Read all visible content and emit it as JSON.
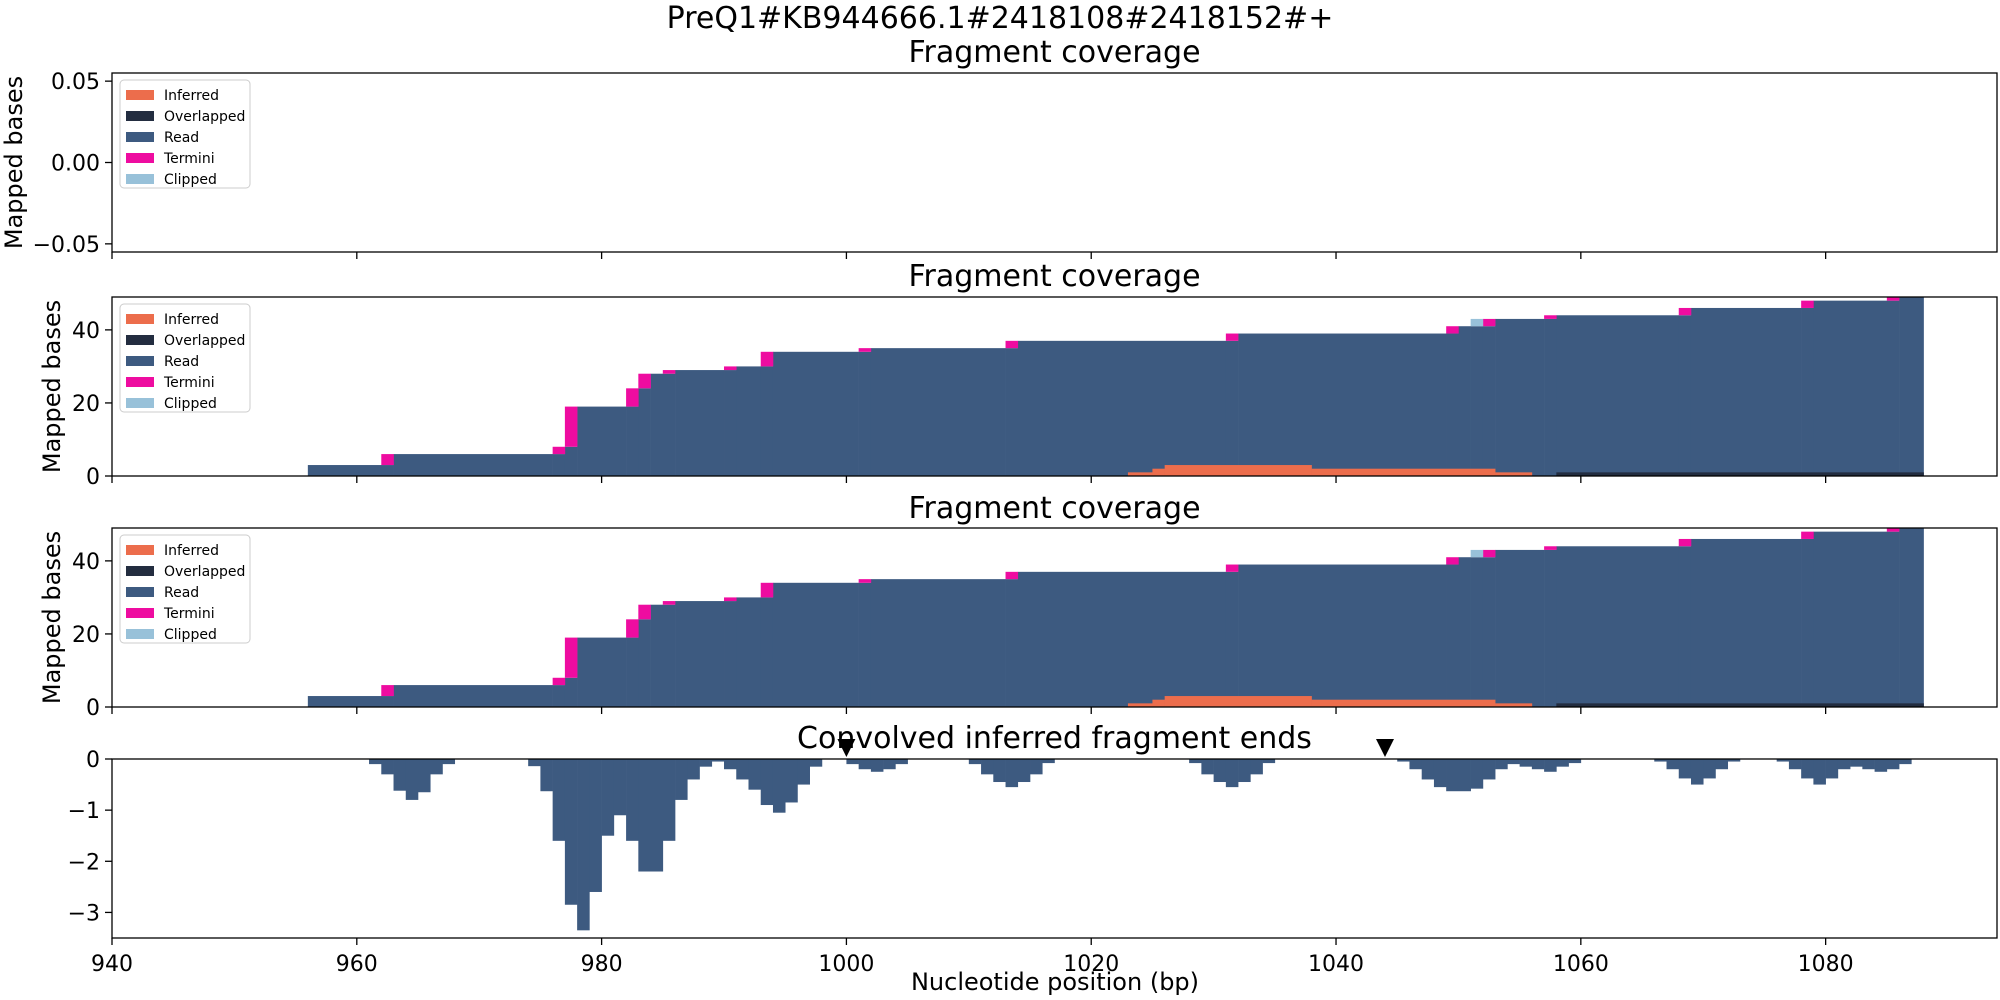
{
  "figure": {
    "suptitle": "PreQ1#KB944666.1#2418108#2418152#+",
    "xlabel": "Nucleotide position (bp)"
  },
  "legend": [
    {
      "label": "Inferred",
      "color": "#ec6d4c"
    },
    {
      "label": "Overlapped",
      "color": "#232d40"
    },
    {
      "label": "Read",
      "color": "#3d5a80"
    },
    {
      "label": "Termini",
      "color": "#ee0ca0"
    },
    {
      "label": "Clipped",
      "color": "#98c1d9"
    }
  ],
  "chart_data": [
    {
      "type": "bar",
      "title": "Fragment coverage",
      "ylabel": "Mapped bases",
      "xlim": [
        940,
        1094
      ],
      "ylim": [
        -0.055,
        0.055
      ],
      "yticks": [
        "0.05",
        "0.00",
        "−0.05"
      ],
      "xticks": [
        "940",
        "960",
        "980",
        "1000",
        "1020",
        "1040",
        "1060",
        "1080"
      ],
      "series": []
    },
    {
      "type": "bar",
      "title": "Fragment coverage",
      "ylabel": "Mapped bases",
      "xlim": [
        940,
        1094
      ],
      "ylim": [
        0,
        49
      ],
      "yticks": [
        "0",
        "20",
        "40"
      ],
      "xticks": [
        "940",
        "960",
        "980",
        "1000",
        "1020",
        "1040",
        "1060",
        "1080"
      ],
      "stacked_steps": [
        {
          "x": 956,
          "read": 3,
          "termini": 0
        },
        {
          "x": 962,
          "read": 3,
          "termini": 3
        },
        {
          "x": 963,
          "read": 6,
          "termini": 0
        },
        {
          "x": 976,
          "read": 6,
          "termini": 2
        },
        {
          "x": 977,
          "read": 8,
          "termini": 11
        },
        {
          "x": 978,
          "read": 19,
          "termini": 0
        },
        {
          "x": 982,
          "read": 19,
          "termini": 5
        },
        {
          "x": 983,
          "read": 24,
          "termini": 4
        },
        {
          "x": 984,
          "read": 28,
          "termini": 0
        },
        {
          "x": 985,
          "read": 28,
          "termini": 1
        },
        {
          "x": 986,
          "read": 29,
          "termini": 0
        },
        {
          "x": 990,
          "read": 29,
          "termini": 1
        },
        {
          "x": 991,
          "read": 30,
          "termini": 0
        },
        {
          "x": 993,
          "read": 30,
          "termini": 4
        },
        {
          "x": 994,
          "read": 34,
          "termini": 0
        },
        {
          "x": 1001,
          "read": 34,
          "termini": 1
        },
        {
          "x": 1002,
          "read": 35,
          "termini": 0
        },
        {
          "x": 1013,
          "read": 35,
          "termini": 2
        },
        {
          "x": 1014,
          "read": 37,
          "termini": 0
        },
        {
          "x": 1031,
          "read": 37,
          "termini": 2
        },
        {
          "x": 1032,
          "read": 39,
          "termini": 0
        },
        {
          "x": 1049,
          "read": 39,
          "termini": 2
        },
        {
          "x": 1050,
          "read": 41,
          "termini": 0
        },
        {
          "x": 1051,
          "read": 41,
          "termini": 0,
          "clipped": 2
        },
        {
          "x": 1052,
          "read": 41,
          "termini": 2
        },
        {
          "x": 1053,
          "read": 43,
          "termini": 0
        },
        {
          "x": 1057,
          "read": 43,
          "termini": 1
        },
        {
          "x": 1058,
          "read": 44,
          "termini": 0
        },
        {
          "x": 1068,
          "read": 44,
          "termini": 2
        },
        {
          "x": 1069,
          "read": 46,
          "termini": 0
        },
        {
          "x": 1078,
          "read": 46,
          "termini": 2
        },
        {
          "x": 1079,
          "read": 48,
          "termini": 0
        },
        {
          "x": 1085,
          "read": 48,
          "termini": 1
        },
        {
          "x": 1086,
          "read": 49,
          "termini": 0
        },
        {
          "x": 1088,
          "read": 0,
          "termini": 0
        }
      ],
      "inferred_steps": [
        {
          "x": 1023,
          "y": 1
        },
        {
          "x": 1025,
          "y": 2
        },
        {
          "x": 1026,
          "y": 3
        },
        {
          "x": 1038,
          "y": 2
        },
        {
          "x": 1053,
          "y": 1
        },
        {
          "x": 1056,
          "y": 0
        }
      ],
      "overlapped_steps": [
        {
          "x": 1058,
          "y": 1
        },
        {
          "x": 1088,
          "y": 0
        }
      ]
    },
    {
      "type": "bar",
      "title": "Fragment coverage",
      "ylabel": "Mapped bases",
      "xlim": [
        940,
        1094
      ],
      "ylim": [
        0,
        49
      ],
      "yticks": [
        "0",
        "20",
        "40"
      ],
      "xticks": [
        "940",
        "960",
        "980",
        "1000",
        "1020",
        "1040",
        "1060",
        "1080"
      ],
      "same_as_previous": true
    },
    {
      "type": "bar",
      "title": "Convolved inferred fragment ends",
      "ylabel": "",
      "xlim": [
        940,
        1094
      ],
      "ylim": [
        -3.5,
        0
      ],
      "yticks": [
        "0",
        "−1",
        "−2",
        "−3"
      ],
      "xticks": [
        "940",
        "960",
        "980",
        "1000",
        "1020",
        "1040",
        "1060",
        "1080"
      ],
      "color": "#3d5a80",
      "values": [
        {
          "x": 961,
          "y": -0.1
        },
        {
          "x": 962,
          "y": -0.3
        },
        {
          "x": 963,
          "y": -0.62
        },
        {
          "x": 964,
          "y": -0.8
        },
        {
          "x": 965,
          "y": -0.65
        },
        {
          "x": 966,
          "y": -0.3
        },
        {
          "x": 967,
          "y": -0.1
        },
        {
          "x": 974,
          "y": -0.14
        },
        {
          "x": 975,
          "y": -0.63
        },
        {
          "x": 976,
          "y": -1.6
        },
        {
          "x": 977,
          "y": -2.85
        },
        {
          "x": 978,
          "y": -3.35
        },
        {
          "x": 979,
          "y": -2.6
        },
        {
          "x": 980,
          "y": -1.5
        },
        {
          "x": 981,
          "y": -1.1
        },
        {
          "x": 982,
          "y": -1.6
        },
        {
          "x": 983,
          "y": -2.2
        },
        {
          "x": 985,
          "y": -1.6
        },
        {
          "x": 986,
          "y": -0.8
        },
        {
          "x": 987,
          "y": -0.4
        },
        {
          "x": 988,
          "y": -0.15
        },
        {
          "x": 989,
          "y": -0.05
        },
        {
          "x": 990,
          "y": -0.2
        },
        {
          "x": 991,
          "y": -0.4
        },
        {
          "x": 992,
          "y": -0.6
        },
        {
          "x": 993,
          "y": -0.9
        },
        {
          "x": 994,
          "y": -1.05
        },
        {
          "x": 995,
          "y": -0.85
        },
        {
          "x": 996,
          "y": -0.5
        },
        {
          "x": 997,
          "y": -0.15
        },
        {
          "x": 1000,
          "y": -0.1
        },
        {
          "x": 1001,
          "y": -0.2
        },
        {
          "x": 1002,
          "y": -0.25
        },
        {
          "x": 1003,
          "y": -0.2
        },
        {
          "x": 1004,
          "y": -0.1
        },
        {
          "x": 1010,
          "y": -0.1
        },
        {
          "x": 1011,
          "y": -0.3
        },
        {
          "x": 1012,
          "y": -0.45
        },
        {
          "x": 1013,
          "y": -0.55
        },
        {
          "x": 1014,
          "y": -0.45
        },
        {
          "x": 1015,
          "y": -0.3
        },
        {
          "x": 1016,
          "y": -0.08
        },
        {
          "x": 1028,
          "y": -0.08
        },
        {
          "x": 1029,
          "y": -0.3
        },
        {
          "x": 1030,
          "y": -0.45
        },
        {
          "x": 1031,
          "y": -0.55
        },
        {
          "x": 1032,
          "y": -0.45
        },
        {
          "x": 1033,
          "y": -0.3
        },
        {
          "x": 1034,
          "y": -0.08
        },
        {
          "x": 1045,
          "y": -0.05
        },
        {
          "x": 1046,
          "y": -0.2
        },
        {
          "x": 1047,
          "y": -0.4
        },
        {
          "x": 1048,
          "y": -0.55
        },
        {
          "x": 1049,
          "y": -0.63
        },
        {
          "x": 1051,
          "y": -0.58
        },
        {
          "x": 1052,
          "y": -0.4
        },
        {
          "x": 1053,
          "y": -0.2
        },
        {
          "x": 1054,
          "y": -0.1
        },
        {
          "x": 1055,
          "y": -0.15
        },
        {
          "x": 1056,
          "y": -0.2
        },
        {
          "x": 1057,
          "y": -0.25
        },
        {
          "x": 1058,
          "y": -0.15
        },
        {
          "x": 1059,
          "y": -0.08
        },
        {
          "x": 1066,
          "y": -0.05
        },
        {
          "x": 1067,
          "y": -0.2
        },
        {
          "x": 1068,
          "y": -0.38
        },
        {
          "x": 1069,
          "y": -0.5
        },
        {
          "x": 1070,
          "y": -0.38
        },
        {
          "x": 1071,
          "y": -0.2
        },
        {
          "x": 1072,
          "y": -0.05
        },
        {
          "x": 1076,
          "y": -0.05
        },
        {
          "x": 1077,
          "y": -0.2
        },
        {
          "x": 1078,
          "y": -0.38
        },
        {
          "x": 1079,
          "y": -0.5
        },
        {
          "x": 1080,
          "y": -0.38
        },
        {
          "x": 1081,
          "y": -0.2
        },
        {
          "x": 1082,
          "y": -0.15
        },
        {
          "x": 1083,
          "y": -0.2
        },
        {
          "x": 1084,
          "y": -0.25
        },
        {
          "x": 1085,
          "y": -0.2
        },
        {
          "x": 1086,
          "y": -0.1
        }
      ],
      "markers": [
        {
          "x": 1000,
          "y": 0
        },
        {
          "x": 1044,
          "y": 0
        }
      ]
    }
  ]
}
